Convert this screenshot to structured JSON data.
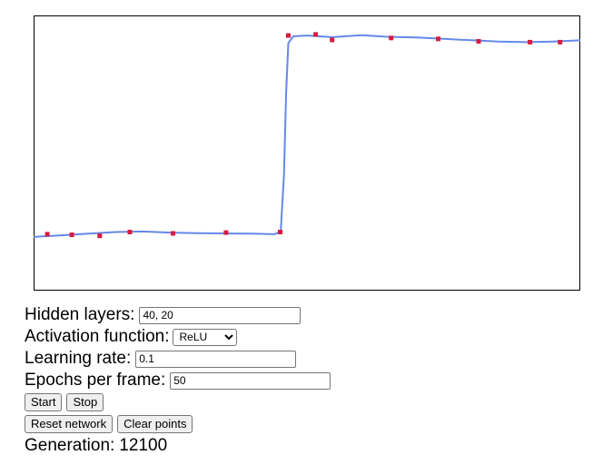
{
  "chart_data": {
    "type": "scatter",
    "xlim": [
      0,
      1
    ],
    "ylim": [
      0,
      1
    ],
    "grid": false,
    "points": [
      {
        "x": 0.025,
        "y": 0.205
      },
      {
        "x": 0.07,
        "y": 0.203
      },
      {
        "x": 0.121,
        "y": 0.199
      },
      {
        "x": 0.176,
        "y": 0.213
      },
      {
        "x": 0.255,
        "y": 0.208
      },
      {
        "x": 0.352,
        "y": 0.211
      },
      {
        "x": 0.451,
        "y": 0.213
      },
      {
        "x": 0.466,
        "y": 0.927
      },
      {
        "x": 0.516,
        "y": 0.931
      },
      {
        "x": 0.546,
        "y": 0.911
      },
      {
        "x": 0.654,
        "y": 0.918
      },
      {
        "x": 0.74,
        "y": 0.915
      },
      {
        "x": 0.814,
        "y": 0.906
      },
      {
        "x": 0.908,
        "y": 0.903
      },
      {
        "x": 0.963,
        "y": 0.903
      }
    ],
    "curve": [
      {
        "x": 0.0,
        "y": 0.195
      },
      {
        "x": 0.05,
        "y": 0.201
      },
      {
        "x": 0.1,
        "y": 0.207
      },
      {
        "x": 0.15,
        "y": 0.213
      },
      {
        "x": 0.2,
        "y": 0.215
      },
      {
        "x": 0.25,
        "y": 0.211
      },
      {
        "x": 0.3,
        "y": 0.209
      },
      {
        "x": 0.35,
        "y": 0.208
      },
      {
        "x": 0.4,
        "y": 0.207
      },
      {
        "x": 0.44,
        "y": 0.205
      },
      {
        "x": 0.452,
        "y": 0.215
      },
      {
        "x": 0.458,
        "y": 0.42
      },
      {
        "x": 0.462,
        "y": 0.72
      },
      {
        "x": 0.466,
        "y": 0.9
      },
      {
        "x": 0.475,
        "y": 0.924
      },
      {
        "x": 0.5,
        "y": 0.927
      },
      {
        "x": 0.546,
        "y": 0.921
      },
      {
        "x": 0.6,
        "y": 0.928
      },
      {
        "x": 0.65,
        "y": 0.922
      },
      {
        "x": 0.7,
        "y": 0.92
      },
      {
        "x": 0.75,
        "y": 0.915
      },
      {
        "x": 0.8,
        "y": 0.91
      },
      {
        "x": 0.85,
        "y": 0.905
      },
      {
        "x": 0.9,
        "y": 0.903
      },
      {
        "x": 0.95,
        "y": 0.905
      },
      {
        "x": 1.0,
        "y": 0.91
      }
    ],
    "point_color": "#d81b3f",
    "curve_color": "#6688e8"
  },
  "controls": {
    "hidden_layers": {
      "label": "Hidden layers:",
      "value": "40, 20"
    },
    "activation": {
      "label": "Activation function:",
      "value": "ReLU"
    },
    "learning_rate": {
      "label": "Learning rate:",
      "value": "0.1"
    },
    "epochs": {
      "label": "Epochs per frame:",
      "value": "50"
    }
  },
  "buttons": {
    "start": "Start",
    "stop": "Stop",
    "reset": "Reset network",
    "clear": "Clear points"
  },
  "status": {
    "generation_label": "Generation:",
    "generation_value": "12100"
  }
}
